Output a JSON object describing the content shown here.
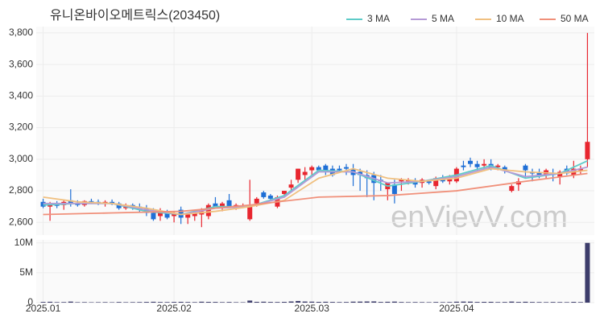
{
  "chart_data": [
    {
      "type": "candlestick",
      "title": "유니온바이오메트릭스(203450)",
      "watermark": "enVievV.com",
      "up_color": "#e8262f",
      "down_color": "#1f6fd6",
      "ylim": [
        2520,
        3840
      ],
      "yticks": [
        {
          "value": 2600,
          "label": "2,600"
        },
        {
          "value": 2800,
          "label": "2,800"
        },
        {
          "value": 3000,
          "label": "3,000"
        },
        {
          "value": 3200,
          "label": "3,200"
        },
        {
          "value": 3400,
          "label": "3,400"
        },
        {
          "value": 3600,
          "label": "3,600"
        },
        {
          "value": 3800,
          "label": "3,800"
        }
      ],
      "xlim": [
        -1,
        80
      ],
      "grid": true,
      "legend": "top-right",
      "ohlc": [
        [
          2730,
          2750,
          2690,
          2700
        ],
        [
          2700,
          2730,
          2610,
          2720
        ],
        [
          2715,
          2735,
          2690,
          2705
        ],
        [
          2710,
          2740,
          2680,
          2730
        ],
        [
          2740,
          2810,
          2700,
          2720
        ],
        [
          2720,
          2740,
          2700,
          2710
        ],
        [
          2710,
          2740,
          2700,
          2735
        ],
        [
          2735,
          2750,
          2720,
          2730
        ],
        [
          2730,
          2745,
          2710,
          2720
        ],
        [
          2725,
          2740,
          2700,
          2730
        ],
        [
          2730,
          2745,
          2710,
          2715
        ],
        [
          2720,
          2730,
          2680,
          2690
        ],
        [
          2690,
          2720,
          2680,
          2710
        ],
        [
          2710,
          2720,
          2680,
          2690
        ],
        [
          2700,
          2720,
          2660,
          2680
        ],
        [
          2690,
          2710,
          2640,
          2660
        ],
        [
          2660,
          2690,
          2610,
          2620
        ],
        [
          2640,
          2690,
          2610,
          2675
        ],
        [
          2660,
          2680,
          2620,
          2630
        ],
        [
          2640,
          2670,
          2600,
          2660
        ],
        [
          2680,
          2700,
          2590,
          2630
        ],
        [
          2630,
          2660,
          2590,
          2650
        ],
        [
          2640,
          2670,
          2610,
          2660
        ],
        [
          2650,
          2690,
          2570,
          2670
        ],
        [
          2640,
          2720,
          2620,
          2710
        ],
        [
          2720,
          2760,
          2700,
          2700
        ],
        [
          2700,
          2730,
          2670,
          2720
        ],
        [
          2740,
          2780,
          2700,
          2700
        ],
        [
          2700,
          2720,
          2680,
          2710
        ],
        [
          2700,
          2720,
          2690,
          2700
        ],
        [
          2620,
          2870,
          2610,
          2700
        ],
        [
          2720,
          2760,
          2700,
          2750
        ],
        [
          2790,
          2800,
          2750,
          2760
        ],
        [
          2770,
          2780,
          2740,
          2750
        ],
        [
          2700,
          2770,
          2690,
          2760
        ],
        [
          2780,
          2800,
          2760,
          2800
        ],
        [
          2820,
          2870,
          2800,
          2840
        ],
        [
          2870,
          2940,
          2850,
          2940
        ],
        [
          2900,
          2950,
          2860,
          2920
        ],
        [
          2930,
          2960,
          2900,
          2950
        ],
        [
          2950,
          2960,
          2920,
          2930
        ],
        [
          2960,
          2970,
          2900,
          2930
        ],
        [
          2940,
          2960,
          2890,
          2900
        ],
        [
          2940,
          2960,
          2920,
          2930
        ],
        [
          2950,
          2970,
          2900,
          2940
        ],
        [
          2940,
          2970,
          2830,
          2900
        ],
        [
          2920,
          2940,
          2800,
          2900
        ],
        [
          2900,
          2930,
          2760,
          2880
        ],
        [
          2900,
          2920,
          2740,
          2850
        ],
        [
          2870,
          2900,
          2800,
          2860
        ],
        [
          2810,
          2850,
          2740,
          2850
        ],
        [
          2840,
          2870,
          2720,
          2780
        ],
        [
          2860,
          2880,
          2800,
          2870
        ],
        [
          2860,
          2880,
          2840,
          2870
        ],
        [
          2860,
          2880,
          2820,
          2840
        ],
        [
          2850,
          2880,
          2820,
          2870
        ],
        [
          2860,
          2870,
          2840,
          2850
        ],
        [
          2830,
          2890,
          2810,
          2880
        ],
        [
          2880,
          2900,
          2850,
          2860
        ],
        [
          2860,
          2900,
          2840,
          2880
        ],
        [
          2860,
          2950,
          2850,
          2940
        ],
        [
          2960,
          2990,
          2930,
          2950
        ],
        [
          2990,
          3010,
          2950,
          2970
        ],
        [
          2970,
          2990,
          2930,
          2950
        ],
        [
          2960,
          3000,
          2940,
          2970
        ],
        [
          2970,
          3000,
          2930,
          2940
        ],
        [
          2950,
          2970,
          2930,
          2960
        ],
        [
          2950,
          2960,
          2910,
          2930
        ],
        [
          2800,
          2840,
          2790,
          2830
        ],
        [
          2840,
          2880,
          2800,
          2860
        ],
        [
          2960,
          2970,
          2880,
          2930
        ],
        [
          2920,
          2940,
          2860,
          2910
        ],
        [
          2920,
          2940,
          2880,
          2900
        ],
        [
          2900,
          2940,
          2880,
          2930
        ],
        [
          2910,
          2940,
          2860,
          2900
        ],
        [
          2890,
          2930,
          2840,
          2920
        ],
        [
          2940,
          2960,
          2900,
          2910
        ],
        [
          2900,
          2990,
          2880,
          2940
        ],
        [
          2930,
          2960,
          2900,
          2940
        ],
        [
          3000,
          3800,
          2950,
          3110
        ]
      ],
      "series": [
        {
          "name": "3 MA",
          "color": "#5ecbc8",
          "x": [
            0,
            5,
            10,
            15,
            20,
            25,
            30,
            35,
            40,
            45,
            50,
            55,
            60,
            65,
            70,
            75,
            79
          ],
          "values": [
            2710,
            2720,
            2720,
            2670,
            2650,
            2700,
            2700,
            2770,
            2930,
            2920,
            2830,
            2860,
            2900,
            2960,
            2880,
            2910,
            2990
          ]
        },
        {
          "name": "5 MA",
          "color": "#b59ad6",
          "x": [
            0,
            5,
            10,
            15,
            20,
            25,
            30,
            35,
            40,
            45,
            50,
            55,
            60,
            65,
            70,
            75,
            79
          ],
          "values": [
            2720,
            2720,
            2720,
            2680,
            2650,
            2690,
            2700,
            2760,
            2920,
            2920,
            2850,
            2860,
            2890,
            2950,
            2890,
            2910,
            2950
          ]
        },
        {
          "name": "10 MA",
          "color": "#f0c080",
          "x": [
            0,
            5,
            10,
            15,
            20,
            25,
            30,
            35,
            40,
            45,
            50,
            55,
            60,
            65,
            70,
            75,
            79
          ],
          "values": [
            2760,
            2730,
            2720,
            2690,
            2650,
            2670,
            2700,
            2740,
            2880,
            2940,
            2880,
            2860,
            2880,
            2940,
            2920,
            2910,
            2930
          ]
        },
        {
          "name": "50 MA",
          "color": "#f0907a",
          "x": [
            0,
            10,
            20,
            30,
            40,
            50,
            60,
            70,
            79
          ],
          "values": [
            2650,
            2660,
            2670,
            2710,
            2760,
            2770,
            2800,
            2860,
            2910
          ]
        }
      ]
    },
    {
      "type": "bar",
      "color": "#3d3d6b",
      "xlim": [
        -1,
        80
      ],
      "ylim": [
        0,
        10500000
      ],
      "yticks": [
        0,
        {
          "value": 5000000,
          "label": "5M"
        },
        {
          "value": 10000000,
          "label": "10M"
        }
      ],
      "xticks": [
        {
          "value": 0,
          "label": "2025.01"
        },
        {
          "value": 19,
          "label": "2025.02"
        },
        {
          "value": 39,
          "label": "2025.03"
        },
        {
          "value": 60,
          "label": "2025.04"
        }
      ],
      "values": [
        120000,
        150000,
        90000,
        100000,
        180000,
        80000,
        90000,
        70000,
        80000,
        90000,
        70000,
        110000,
        80000,
        90000,
        100000,
        120000,
        150000,
        110000,
        100000,
        120000,
        140000,
        110000,
        90000,
        160000,
        130000,
        120000,
        90000,
        110000,
        80000,
        70000,
        350000,
        140000,
        160000,
        120000,
        110000,
        130000,
        200000,
        280000,
        190000,
        170000,
        130000,
        150000,
        120000,
        100000,
        110000,
        170000,
        180000,
        200000,
        210000,
        120000,
        150000,
        180000,
        110000,
        90000,
        100000,
        90000,
        80000,
        110000,
        90000,
        100000,
        160000,
        180000,
        170000,
        120000,
        130000,
        140000,
        100000,
        110000,
        180000,
        120000,
        150000,
        110000,
        100000,
        90000,
        110000,
        100000,
        90000,
        130000,
        100000,
        10000000
      ]
    }
  ]
}
